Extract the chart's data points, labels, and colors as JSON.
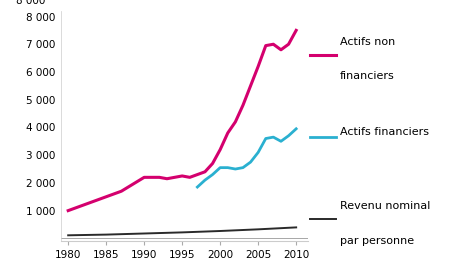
{
  "years_anf": [
    1980,
    1982,
    1984,
    1985,
    1987,
    1990,
    1991,
    1992,
    1993,
    1994,
    1995,
    1996,
    1997,
    1998,
    1999,
    2000,
    2001,
    2002,
    2003,
    2004,
    2005,
    2006,
    2007,
    2008,
    2009,
    2010
  ],
  "actifs_non_fin": [
    1000,
    1200,
    1400,
    1500,
    1700,
    2200,
    2200,
    2200,
    2150,
    2200,
    2250,
    2200,
    2300,
    2400,
    2700,
    3200,
    3800,
    4200,
    4800,
    5500,
    6200,
    6950,
    7000,
    6800,
    7000,
    7500
  ],
  "years_af": [
    1997,
    1998,
    1999,
    2000,
    2001,
    2002,
    2003,
    2004,
    2005,
    2006,
    2007,
    2008,
    2009,
    2010
  ],
  "actifs_fin": [
    1850,
    2100,
    2300,
    2550,
    2550,
    2500,
    2550,
    2750,
    3100,
    3600,
    3650,
    3500,
    3700,
    3950
  ],
  "years_rev": [
    1980,
    1985,
    1990,
    1995,
    2000,
    2005,
    2010
  ],
  "revenu": [
    110,
    135,
    175,
    215,
    265,
    325,
    395
  ],
  "color_anf": "#d4006e",
  "color_af": "#2ab0d0",
  "color_rev": "#2a2a2a",
  "label_anf": "Actifs non\nfinanciers",
  "label_af": "Actifs financiers",
  "label_rev": "Revenu nominal\npar personne",
  "xlim": [
    1979,
    2011.5
  ],
  "ylim": [
    -100,
    8200
  ],
  "xticks": [
    1980,
    1985,
    1990,
    1995,
    2000,
    2005,
    2010
  ],
  "yticks": [
    1000,
    2000,
    3000,
    4000,
    5000,
    6000,
    7000,
    8000
  ],
  "ytick_labels": [
    "1 000",
    "2 000",
    "3 000",
    "4 000",
    "5 000",
    "6 000",
    "7 000",
    "8 000"
  ],
  "background_color": "#ffffff",
  "linewidth_anf": 2.2,
  "linewidth_af": 2.0,
  "linewidth_rev": 1.4,
  "legend_fontsize": 8.0,
  "tick_fontsize": 7.5
}
